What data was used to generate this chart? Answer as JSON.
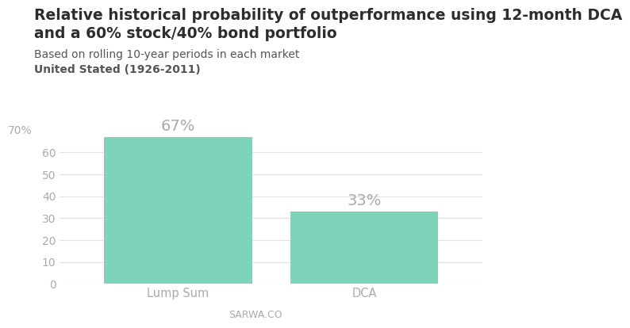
{
  "title_line1": "Relative historical probability of outperformance using 12-month DCA",
  "title_line2": "and a 60% stock/40% bond portfolio",
  "subtitle1": "Based on rolling 10-year periods in each market",
  "subtitle2": "United Stated (1926-2011)",
  "categories": [
    "Lump Sum",
    "DCA"
  ],
  "values": [
    67,
    33
  ],
  "bar_color": "#7dd4bb",
  "bar_width": 0.35,
  "value_label_color": "#aaaaaa",
  "ytick_label": "70%",
  "yticks": [
    0,
    10,
    20,
    30,
    40,
    50,
    60
  ],
  "ylim": [
    0,
    75
  ],
  "grid_color": "#e0e0e0",
  "background_color": "#ffffff",
  "title_color": "#2d2d2d",
  "subtitle_color": "#555555",
  "tick_color": "#aaaaaa",
  "footer_text": "SARWA.CO",
  "footer_color": "#aaaaaa",
  "title_fontsize": 13.5,
  "subtitle_fontsize": 10,
  "bar_label_fontsize": 14,
  "tick_fontsize": 10,
  "xticklabel_fontsize": 10.5
}
